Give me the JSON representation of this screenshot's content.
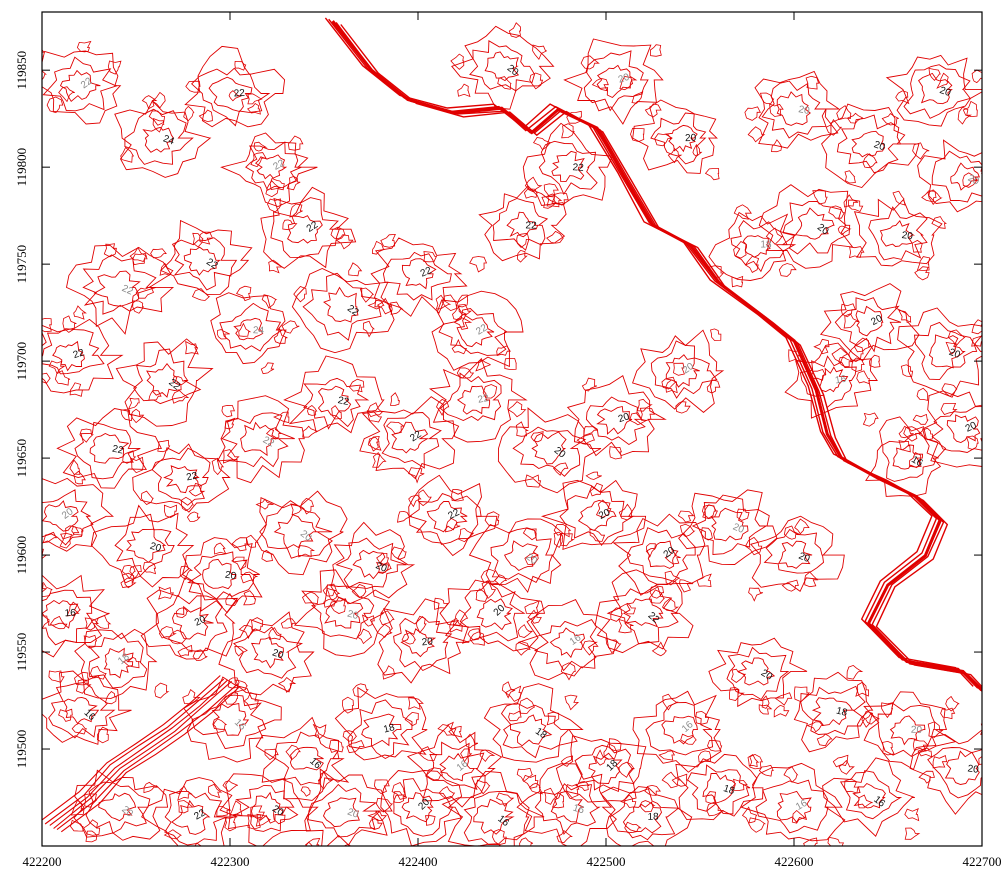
{
  "map": {
    "type": "contour",
    "line_color": "#e00000",
    "label_color_dark": "#111111",
    "label_color_light": "#8c8c8c",
    "grid": false,
    "x_range": [
      422200,
      422700
    ],
    "y_range": [
      119450,
      119880
    ],
    "x_ticks": [
      422200,
      422300,
      422400,
      422500,
      422600,
      422700
    ],
    "y_ticks": [
      119500,
      119550,
      119600,
      119650,
      119700,
      119750,
      119800,
      119850
    ],
    "contour_levels": [
      "12",
      "14",
      "16",
      "18",
      "20",
      "22",
      "24"
    ],
    "river_path": [
      [
        422355,
        119875
      ],
      [
        422375,
        119850
      ],
      [
        422395,
        119835
      ],
      [
        422420,
        119828
      ],
      [
        422445,
        119830
      ],
      [
        422460,
        119818
      ],
      [
        422475,
        119830
      ],
      [
        422495,
        119820
      ],
      [
        422510,
        119795
      ],
      [
        422525,
        119770
      ],
      [
        422545,
        119760
      ],
      [
        422560,
        119740
      ],
      [
        422585,
        119722
      ],
      [
        422600,
        119710
      ],
      [
        422612,
        119685
      ],
      [
        422618,
        119662
      ],
      [
        422625,
        119650
      ],
      [
        422645,
        119640
      ],
      [
        422665,
        119630
      ],
      [
        422678,
        119618
      ],
      [
        422670,
        119600
      ],
      [
        422650,
        119585
      ],
      [
        422640,
        119565
      ],
      [
        422660,
        119545
      ],
      [
        422690,
        119540
      ],
      [
        422700,
        119530
      ]
    ],
    "lower_left_trace": [
      [
        422205,
        119460
      ],
      [
        422225,
        119475
      ],
      [
        422240,
        119490
      ],
      [
        422255,
        119500
      ],
      [
        422270,
        119510
      ],
      [
        422285,
        119522
      ],
      [
        422300,
        119535
      ]
    ],
    "contour_loops": [
      {
        "cx": 422220,
        "cy": 119842,
        "r": 9,
        "l": "22"
      },
      {
        "cx": 422262,
        "cy": 119815,
        "r": 8,
        "l": "24"
      },
      {
        "cx": 422300,
        "cy": 119838,
        "r": 10,
        "l": "22"
      },
      {
        "cx": 422322,
        "cy": 119800,
        "r": 7,
        "l": "22"
      },
      {
        "cx": 422340,
        "cy": 119768,
        "r": 9,
        "l": "22"
      },
      {
        "cx": 422285,
        "cy": 119752,
        "r": 8,
        "l": "22"
      },
      {
        "cx": 422240,
        "cy": 119738,
        "r": 10,
        "l": "22"
      },
      {
        "cx": 422215,
        "cy": 119703,
        "r": 8,
        "l": "22"
      },
      {
        "cx": 422265,
        "cy": 119690,
        "r": 9,
        "l": "22"
      },
      {
        "cx": 422310,
        "cy": 119716,
        "r": 7,
        "l": "24"
      },
      {
        "cx": 422360,
        "cy": 119728,
        "r": 10,
        "l": "22"
      },
      {
        "cx": 422400,
        "cy": 119745,
        "r": 8,
        "l": "22"
      },
      {
        "cx": 422430,
        "cy": 119715,
        "r": 9,
        "l": "22"
      },
      {
        "cx": 422455,
        "cy": 119770,
        "r": 7,
        "l": "22"
      },
      {
        "cx": 422480,
        "cy": 119800,
        "r": 8,
        "l": "22"
      },
      {
        "cx": 422505,
        "cy": 119845,
        "r": 9,
        "l": "20"
      },
      {
        "cx": 422445,
        "cy": 119852,
        "r": 8,
        "l": "20"
      },
      {
        "cx": 422540,
        "cy": 119815,
        "r": 7,
        "l": "20"
      },
      {
        "cx": 422600,
        "cy": 119830,
        "r": 9,
        "l": "20"
      },
      {
        "cx": 422640,
        "cy": 119812,
        "r": 8,
        "l": "20"
      },
      {
        "cx": 422675,
        "cy": 119840,
        "r": 9,
        "l": "20"
      },
      {
        "cx": 422690,
        "cy": 119795,
        "r": 7,
        "l": "20"
      },
      {
        "cx": 422655,
        "cy": 119765,
        "r": 8,
        "l": "20"
      },
      {
        "cx": 422610,
        "cy": 119770,
        "r": 9,
        "l": "20"
      },
      {
        "cx": 422580,
        "cy": 119760,
        "r": 7,
        "l": "18"
      },
      {
        "cx": 422640,
        "cy": 119720,
        "r": 8,
        "l": "20"
      },
      {
        "cx": 422680,
        "cy": 119705,
        "r": 9,
        "l": "20"
      },
      {
        "cx": 422620,
        "cy": 119690,
        "r": 7,
        "l": "16"
      },
      {
        "cx": 422690,
        "cy": 119665,
        "r": 8,
        "l": "20"
      },
      {
        "cx": 422660,
        "cy": 119650,
        "r": 7,
        "l": "16"
      },
      {
        "cx": 422540,
        "cy": 119695,
        "r": 9,
        "l": "20"
      },
      {
        "cx": 422505,
        "cy": 119670,
        "r": 8,
        "l": "20"
      },
      {
        "cx": 422470,
        "cy": 119655,
        "r": 9,
        "l": "20"
      },
      {
        "cx": 422430,
        "cy": 119680,
        "r": 8,
        "l": "22"
      },
      {
        "cx": 422395,
        "cy": 119660,
        "r": 9,
        "l": "22"
      },
      {
        "cx": 422355,
        "cy": 119680,
        "r": 8,
        "l": "22"
      },
      {
        "cx": 422315,
        "cy": 119660,
        "r": 9,
        "l": "22"
      },
      {
        "cx": 422275,
        "cy": 119640,
        "r": 8,
        "l": "22"
      },
      {
        "cx": 422235,
        "cy": 119655,
        "r": 9,
        "l": "22"
      },
      {
        "cx": 422210,
        "cy": 119620,
        "r": 8,
        "l": "20"
      },
      {
        "cx": 422255,
        "cy": 119605,
        "r": 9,
        "l": "20"
      },
      {
        "cx": 422295,
        "cy": 119590,
        "r": 8,
        "l": "20"
      },
      {
        "cx": 422335,
        "cy": 119612,
        "r": 9,
        "l": "20"
      },
      {
        "cx": 422375,
        "cy": 119595,
        "r": 8,
        "l": "20"
      },
      {
        "cx": 422415,
        "cy": 119620,
        "r": 9,
        "l": "22"
      },
      {
        "cx": 422455,
        "cy": 119600,
        "r": 8,
        "l": "20"
      },
      {
        "cx": 422495,
        "cy": 119620,
        "r": 9,
        "l": "20"
      },
      {
        "cx": 422530,
        "cy": 119600,
        "r": 8,
        "l": "20"
      },
      {
        "cx": 422565,
        "cy": 119615,
        "r": 9,
        "l": "20"
      },
      {
        "cx": 422600,
        "cy": 119600,
        "r": 8,
        "l": "20"
      },
      {
        "cx": 422520,
        "cy": 119570,
        "r": 9,
        "l": "22"
      },
      {
        "cx": 422480,
        "cy": 119555,
        "r": 8,
        "l": "16"
      },
      {
        "cx": 422440,
        "cy": 119570,
        "r": 9,
        "l": "20"
      },
      {
        "cx": 422400,
        "cy": 119555,
        "r": 8,
        "l": "20"
      },
      {
        "cx": 422360,
        "cy": 119570,
        "r": 9,
        "l": "20"
      },
      {
        "cx": 422320,
        "cy": 119550,
        "r": 8,
        "l": "20"
      },
      {
        "cx": 422280,
        "cy": 119565,
        "r": 9,
        "l": "20"
      },
      {
        "cx": 422240,
        "cy": 119545,
        "r": 8,
        "l": "18"
      },
      {
        "cx": 422210,
        "cy": 119570,
        "r": 9,
        "l": "16"
      },
      {
        "cx": 422220,
        "cy": 119520,
        "r": 8,
        "l": "16"
      },
      {
        "cx": 422300,
        "cy": 119515,
        "r": 9,
        "l": "16"
      },
      {
        "cx": 422340,
        "cy": 119495,
        "r": 8,
        "l": "16"
      },
      {
        "cx": 422380,
        "cy": 119510,
        "r": 9,
        "l": "18"
      },
      {
        "cx": 422420,
        "cy": 119490,
        "r": 8,
        "l": "16"
      },
      {
        "cx": 422460,
        "cy": 119510,
        "r": 9,
        "l": "18"
      },
      {
        "cx": 422500,
        "cy": 119490,
        "r": 8,
        "l": "18"
      },
      {
        "cx": 422540,
        "cy": 119510,
        "r": 9,
        "l": "16"
      },
      {
        "cx": 422580,
        "cy": 119540,
        "r": 8,
        "l": "20"
      },
      {
        "cx": 422620,
        "cy": 119520,
        "r": 9,
        "l": "18"
      },
      {
        "cx": 422660,
        "cy": 119510,
        "r": 8,
        "l": "20"
      },
      {
        "cx": 422690,
        "cy": 119490,
        "r": 9,
        "l": "20"
      },
      {
        "cx": 422640,
        "cy": 119475,
        "r": 8,
        "l": "16"
      },
      {
        "cx": 422600,
        "cy": 119470,
        "r": 9,
        "l": "16"
      },
      {
        "cx": 422560,
        "cy": 119480,
        "r": 8,
        "l": "18"
      },
      {
        "cx": 422520,
        "cy": 119465,
        "r": 9,
        "l": "18"
      },
      {
        "cx": 422480,
        "cy": 119470,
        "r": 8,
        "l": "16"
      },
      {
        "cx": 422440,
        "cy": 119465,
        "r": 9,
        "l": "16"
      },
      {
        "cx": 422400,
        "cy": 119470,
        "r": 8,
        "l": "20"
      },
      {
        "cx": 422360,
        "cy": 119468,
        "r": 9,
        "l": "20"
      },
      {
        "cx": 422320,
        "cy": 119470,
        "r": 8,
        "l": "20"
      },
      {
        "cx": 422280,
        "cy": 119465,
        "r": 9,
        "l": "22"
      },
      {
        "cx": 422240,
        "cy": 119470,
        "r": 8,
        "l": "20"
      }
    ],
    "wobble_seed": 7
  }
}
